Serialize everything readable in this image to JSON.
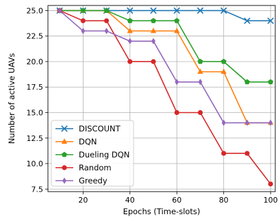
{
  "chart_data": {
    "type": "line",
    "title": "",
    "xlabel": "Epochs (Time-slots)",
    "ylabel": "Number of active UAVs",
    "x": [
      10,
      20,
      30,
      40,
      50,
      60,
      70,
      80,
      90,
      100
    ],
    "xlim": [
      5,
      102
    ],
    "ylim": [
      7.25,
      25.5
    ],
    "xticks": [
      20,
      40,
      60,
      80,
      100
    ],
    "xtick_labels": [
      "20",
      "40",
      "60",
      "80",
      "100"
    ],
    "yticks": [
      7.5,
      10.0,
      12.5,
      15.0,
      17.5,
      20.0,
      22.5,
      25.0
    ],
    "ytick_labels": [
      "7.5",
      "10.0",
      "12.5",
      "15.0",
      "17.5",
      "20.0",
      "22.5",
      "25.0"
    ],
    "grid": true,
    "legend_position": "lower-left",
    "series": [
      {
        "name": "DISCOUNT",
        "color": "#1f77b4",
        "marker": "x",
        "values": [
          25,
          25,
          25,
          25,
          25,
          25,
          25,
          25,
          24,
          24
        ]
      },
      {
        "name": "DQN",
        "color": "#ff7f0e",
        "marker": "triangle",
        "values": [
          25,
          25,
          25,
          23,
          23,
          23,
          19,
          19,
          14,
          14
        ]
      },
      {
        "name": "Dueling DQN",
        "color": "#2ca02c",
        "marker": "pentagon",
        "values": [
          25,
          25,
          25,
          24,
          24,
          24,
          20,
          20,
          18,
          18
        ]
      },
      {
        "name": "Random",
        "color": "#d62728",
        "marker": "circle",
        "values": [
          25,
          24,
          24,
          20,
          20,
          15,
          15,
          11,
          11,
          8
        ]
      },
      {
        "name": "Greedy",
        "color": "#9467bd",
        "marker": "diamond",
        "values": [
          25,
          23,
          23,
          22,
          22,
          18,
          18,
          14,
          14,
          14
        ]
      }
    ]
  }
}
